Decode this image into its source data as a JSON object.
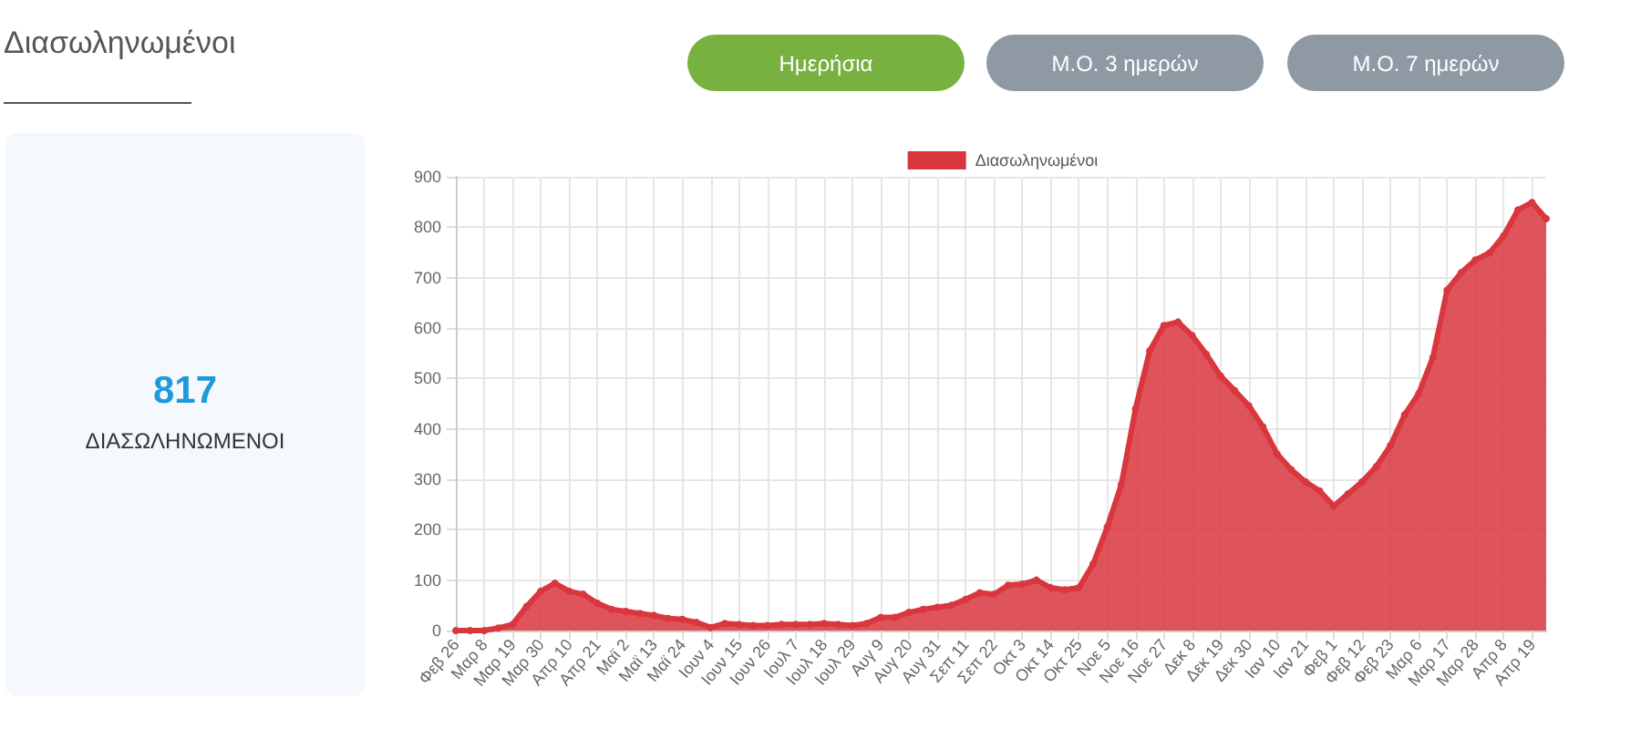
{
  "chart_data": {
    "type": "area",
    "title": "Διασωληνωμένοι",
    "categories": [
      "Φεβ 26",
      null,
      "Μαρ 8",
      null,
      "Μαρ 19",
      null,
      "Μαρ 30",
      null,
      "Απρ 10",
      null,
      "Απρ 21",
      null,
      "Μαϊ 2",
      null,
      "Μαϊ 13",
      null,
      "Μαϊ 24",
      null,
      "Ιουν 4",
      null,
      "Ιουν 15",
      null,
      "Ιουν 26",
      null,
      "Ιουλ 7",
      null,
      "Ιουλ 18",
      null,
      "Ιουλ 29",
      null,
      "Αυγ 9",
      null,
      "Αυγ 20",
      null,
      "Αυγ 31",
      null,
      "Σεπ 11",
      null,
      "Σεπ 22",
      null,
      "Οκτ 3",
      null,
      "Οκτ 14",
      null,
      "Οκτ 25",
      null,
      "Νοε 5",
      null,
      "Νοε 16",
      null,
      "Νοε 27",
      null,
      "Δεκ 8",
      null,
      "Δεκ 19",
      null,
      "Δεκ 30",
      null,
      "Ιαν 10",
      null,
      "Ιαν 21",
      null,
      "Φεβ 1",
      null,
      "Φεβ 12",
      null,
      "Φεβ 23",
      null,
      "Μαρ 6",
      null,
      "Μαρ 17",
      null,
      "Μαρ 28",
      null,
      "Απρ 8",
      null,
      "Απρ 19",
      null
    ],
    "series": [
      {
        "name": "Διασωληνωμένοι",
        "color": "#d9363e",
        "values": [
          0,
          0,
          0,
          5,
          12,
          48,
          78,
          94,
          78,
          72,
          54,
          42,
          38,
          34,
          30,
          24,
          22,
          16,
          6,
          14,
          12,
          10,
          10,
          12,
          12,
          12,
          14,
          12,
          10,
          14,
          26,
          26,
          36,
          42,
          46,
          50,
          62,
          75,
          72,
          90,
          92,
          100,
          85,
          81,
          85,
          132,
          205,
          290,
          440,
          555,
          605,
          612,
          585,
          548,
          505,
          476,
          446,
          404,
          350,
          319,
          295,
          277,
          247,
          271,
          295,
          325,
          367,
          428,
          470,
          542,
          675,
          710,
          735,
          749,
          783,
          834,
          849,
          817
        ]
      }
    ],
    "ylim": [
      0,
      900
    ],
    "yticks": [
      0,
      100,
      200,
      300,
      400,
      500,
      600,
      700,
      800,
      900
    ],
    "grid": true,
    "legend": "top",
    "marker": "circle",
    "annotations": [
      "Ημερήσια",
      "Μ.Ο. 3 ημερών",
      "Μ.Ο. 7 ημερών",
      "817",
      "ΔΙΑΣΩΛΗΝΩΜΕΝΟΙ"
    ]
  }
}
